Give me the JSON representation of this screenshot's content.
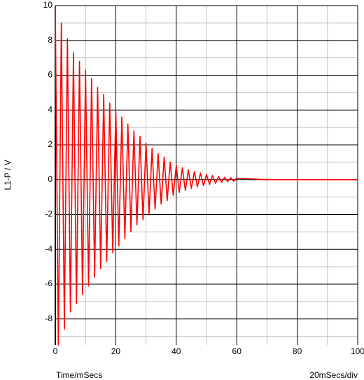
{
  "chart_data": {
    "type": "line",
    "y_label": "L1-P / V",
    "x_label": "Time/mSecs",
    "annotation": "20mSecs/div",
    "x": [
      0,
      1,
      2,
      3,
      4,
      5,
      6,
      7,
      8,
      9,
      10,
      11,
      12,
      13,
      14,
      15,
      16,
      17,
      18,
      19,
      20,
      21,
      22,
      23,
      24,
      25,
      26,
      27,
      28,
      29,
      30,
      31,
      32,
      33,
      34,
      35,
      36,
      37,
      38,
      39,
      40,
      41,
      42,
      43,
      44,
      45,
      46,
      47,
      48,
      49,
      50,
      51,
      52,
      53,
      54,
      55,
      56,
      57,
      58,
      59,
      60,
      70,
      100
    ],
    "series": [
      {
        "name": "L1-P",
        "color": "#ff0000",
        "values": [
          10,
          -9.5,
          9.0,
          -8.6,
          8.1,
          -7.6,
          7.3,
          -7.1,
          6.8,
          -6.6,
          6.3,
          -6.1,
          5.8,
          -5.6,
          5.3,
          -5.1,
          4.9,
          -4.7,
          4.4,
          -4.2,
          4.0,
          -3.8,
          3.6,
          -3.4,
          3.2,
          -3.0,
          2.8,
          -2.6,
          2.5,
          -2.3,
          2.1,
          -2.0,
          1.8,
          -1.7,
          1.5,
          -1.4,
          1.3,
          -1.2,
          1.0,
          -0.9,
          0.8,
          -0.74,
          0.68,
          -0.62,
          0.56,
          -0.5,
          0.46,
          -0.42,
          0.38,
          -0.34,
          0.3,
          -0.27,
          0.24,
          -0.21,
          0.18,
          -0.15,
          0.14,
          -0.12,
          0.11,
          -0.09,
          0.08,
          0,
          0
        ]
      }
    ],
    "xlim": [
      0,
      100
    ],
    "xticks": [
      0,
      20,
      40,
      60,
      80,
      100
    ],
    "ylim": [
      -9.5,
      10
    ],
    "yticks": [
      -8,
      -6,
      -4,
      -2,
      0,
      2,
      4,
      6,
      8,
      10
    ],
    "grid": true,
    "minor_grid": true
  }
}
